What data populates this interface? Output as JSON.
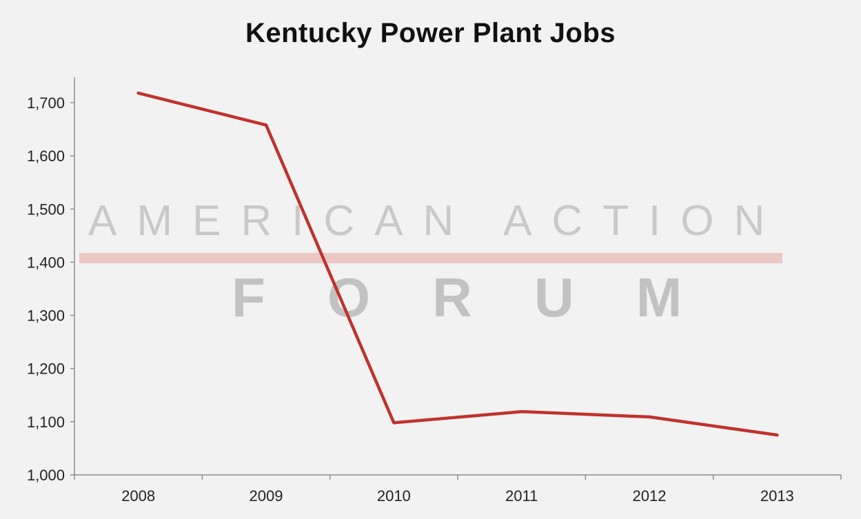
{
  "chart_data": {
    "type": "line",
    "title": "Kentucky Power Plant Jobs",
    "xlabel": "",
    "ylabel": "",
    "categories": [
      "2008",
      "2009",
      "2010",
      "2011",
      "2012",
      "2013"
    ],
    "series": [
      {
        "values": [
          1718,
          1658,
          1098,
          1119,
          1109,
          1075
        ],
        "color": "#c0322b"
      }
    ],
    "ylim": [
      1000,
      1700
    ],
    "yticks": [
      1000,
      1100,
      1200,
      1300,
      1400,
      1500,
      1600,
      1700
    ],
    "ytick_labels": [
      "1,000",
      "1,100",
      "1,200",
      "1,300",
      "1,400",
      "1,500",
      "1,600",
      "1,700"
    ],
    "grid": false,
    "legend": "none"
  },
  "watermark": {
    "line1": "AMERICAN ACTION",
    "line2": "FORUM",
    "text_color": "#c9c9c9",
    "bar_color": "#ecc8c5"
  },
  "colors": {
    "background": "#f2f2f2",
    "axis": "#8c8c8c"
  }
}
